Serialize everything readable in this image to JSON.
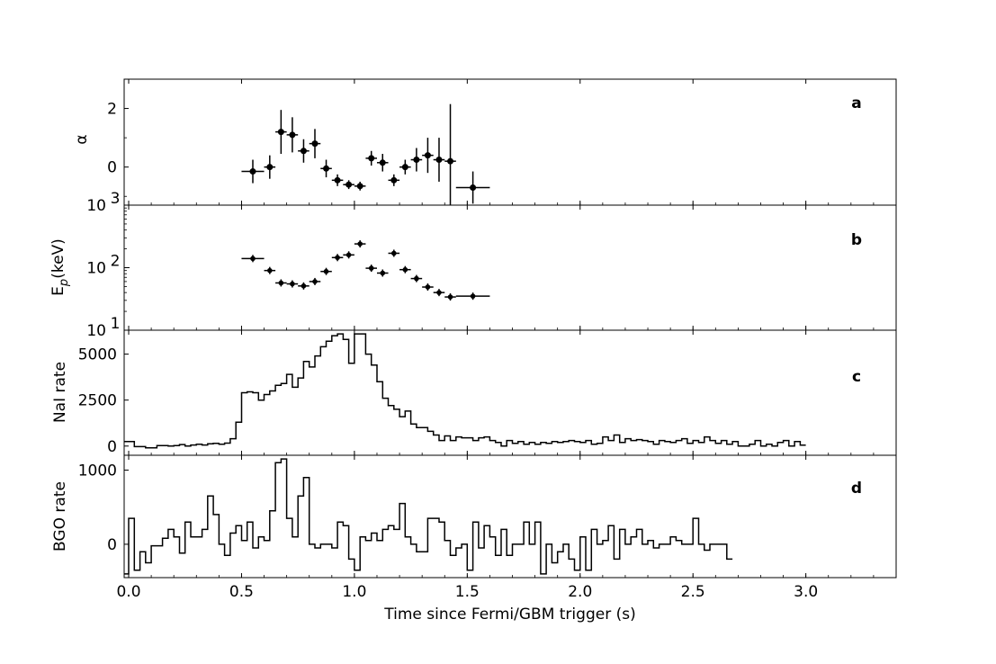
{
  "xlabel": "Time since  Fermi/GBM trigger (s)",
  "x_ticks": [
    "0.0",
    "0.5",
    "1.0",
    "1.5",
    "2.0",
    "2.5",
    "3.0"
  ],
  "chart_data": [
    {
      "type": "scatter",
      "panel": "a",
      "ylabel": "α",
      "xlim": [
        -0.02,
        3.4
      ],
      "ylim": [
        -1.3,
        3.0
      ],
      "y_ticks": [
        "0",
        "2"
      ],
      "points": [
        {
          "x": 0.55,
          "y": -0.15,
          "xerr": 0.05,
          "yerr": 0.4
        },
        {
          "x": 0.625,
          "y": 0.0,
          "xerr": 0.025,
          "yerr": 0.4
        },
        {
          "x": 0.675,
          "y": 1.2,
          "xerr": 0.025,
          "yerr": 0.75
        },
        {
          "x": 0.725,
          "y": 1.1,
          "xerr": 0.025,
          "yerr": 0.6
        },
        {
          "x": 0.775,
          "y": 0.55,
          "xerr": 0.025,
          "yerr": 0.4
        },
        {
          "x": 0.825,
          "y": 0.8,
          "xerr": 0.025,
          "yerr": 0.5
        },
        {
          "x": 0.875,
          "y": -0.05,
          "xerr": 0.025,
          "yerr": 0.3
        },
        {
          "x": 0.925,
          "y": -0.45,
          "xerr": 0.025,
          "yerr": 0.2
        },
        {
          "x": 0.975,
          "y": -0.6,
          "xerr": 0.025,
          "yerr": 0.15
        },
        {
          "x": 1.025,
          "y": -0.65,
          "xerr": 0.025,
          "yerr": 0.15
        },
        {
          "x": 1.075,
          "y": 0.3,
          "xerr": 0.025,
          "yerr": 0.25
        },
        {
          "x": 1.125,
          "y": 0.15,
          "xerr": 0.025,
          "yerr": 0.3
        },
        {
          "x": 1.175,
          "y": -0.45,
          "xerr": 0.025,
          "yerr": 0.2
        },
        {
          "x": 1.225,
          "y": 0.0,
          "xerr": 0.025,
          "yerr": 0.25
        },
        {
          "x": 1.275,
          "y": 0.25,
          "xerr": 0.025,
          "yerr": 0.4
        },
        {
          "x": 1.325,
          "y": 0.4,
          "xerr": 0.025,
          "yerr": 0.6
        },
        {
          "x": 1.375,
          "y": 0.25,
          "xerr": 0.025,
          "yerr": 0.75
        },
        {
          "x": 1.425,
          "y": 0.2,
          "xerr": 0.025,
          "yerr": 1.95
        },
        {
          "x": 1.525,
          "y": -0.7,
          "xerr": 0.075,
          "yerr": 0.55
        }
      ]
    },
    {
      "type": "scatter",
      "panel": "b",
      "ylabel": "E_p (keV)",
      "yscale": "log",
      "xlim": [
        -0.02,
        3.4
      ],
      "ylim": [
        10,
        1000
      ],
      "y_ticks": [
        "10^1",
        "10^2",
        "10^3"
      ],
      "points": [
        {
          "x": 0.55,
          "y": 140,
          "xerr": 0.05
        },
        {
          "x": 0.625,
          "y": 90,
          "xerr": 0.025
        },
        {
          "x": 0.675,
          "y": 57,
          "xerr": 0.025
        },
        {
          "x": 0.725,
          "y": 55,
          "xerr": 0.025
        },
        {
          "x": 0.775,
          "y": 51,
          "xerr": 0.025
        },
        {
          "x": 0.825,
          "y": 60,
          "xerr": 0.025
        },
        {
          "x": 0.875,
          "y": 87,
          "xerr": 0.025
        },
        {
          "x": 0.925,
          "y": 145,
          "xerr": 0.025
        },
        {
          "x": 0.975,
          "y": 160,
          "xerr": 0.025
        },
        {
          "x": 1.025,
          "y": 240,
          "xerr": 0.025
        },
        {
          "x": 1.075,
          "y": 98,
          "xerr": 0.025
        },
        {
          "x": 1.125,
          "y": 82,
          "xerr": 0.025
        },
        {
          "x": 1.175,
          "y": 170,
          "xerr": 0.025
        },
        {
          "x": 1.225,
          "y": 93,
          "xerr": 0.025
        },
        {
          "x": 1.275,
          "y": 67,
          "xerr": 0.025
        },
        {
          "x": 1.325,
          "y": 49,
          "xerr": 0.025
        },
        {
          "x": 1.375,
          "y": 40,
          "xerr": 0.025
        },
        {
          "x": 1.425,
          "y": 34,
          "xerr": 0.025
        },
        {
          "x": 1.525,
          "y": 35,
          "xerr": 0.075
        }
      ]
    },
    {
      "type": "line",
      "style": "step",
      "panel": "c",
      "ylabel": "NaI rate",
      "xlim": [
        -0.02,
        3.4
      ],
      "ylim": [
        -500,
        6300
      ],
      "y_ticks": [
        "0",
        "2500",
        "5000"
      ],
      "bin_width": 0.025,
      "x_start": -0.025,
      "values": [
        250,
        250,
        -30,
        -30,
        -100,
        -100,
        30,
        30,
        0,
        30,
        80,
        0,
        60,
        100,
        60,
        120,
        150,
        100,
        160,
        400,
        1300,
        2900,
        2950,
        2900,
        2500,
        2800,
        3000,
        3300,
        3400,
        3900,
        3200,
        3700,
        4600,
        4300,
        4900,
        5400,
        5700,
        6000,
        6100,
        5800,
        4500,
        6100,
        6100,
        5000,
        4400,
        3500,
        2600,
        2200,
        2000,
        1600,
        1900,
        1200,
        1000,
        1000,
        800,
        600,
        300,
        550,
        300,
        500,
        450,
        450,
        300,
        450,
        500,
        300,
        200,
        0,
        300,
        150,
        250,
        100,
        200,
        100,
        200,
        150,
        250,
        200,
        250,
        300,
        250,
        200,
        300,
        100,
        150,
        500,
        300,
        600,
        200,
        400,
        300,
        350,
        300,
        250,
        100,
        300,
        250,
        200,
        300,
        400,
        150,
        300,
        200,
        500,
        300,
        150,
        300,
        100,
        250,
        0,
        0,
        100,
        300,
        0,
        100,
        0,
        200,
        300,
        0,
        250,
        50
      ]
    },
    {
      "type": "line",
      "style": "step",
      "panel": "d",
      "ylabel": "BGO rate",
      "xlim": [
        -0.02,
        3.4
      ],
      "ylim": [
        -450,
        1200
      ],
      "y_ticks": [
        "0",
        "1000"
      ],
      "bin_width": 0.025,
      "x_start": -0.025,
      "values": [
        -400,
        350,
        -350,
        -100,
        -250,
        -20,
        -20,
        80,
        200,
        100,
        -120,
        300,
        100,
        100,
        200,
        650,
        400,
        0,
        -150,
        150,
        250,
        50,
        300,
        -50,
        100,
        50,
        450,
        1100,
        1150,
        350,
        100,
        650,
        900,
        0,
        -50,
        0,
        0,
        -50,
        300,
        250,
        -200,
        -350,
        100,
        50,
        150,
        50,
        200,
        250,
        200,
        550,
        100,
        0,
        -100,
        -100,
        350,
        350,
        300,
        50,
        -150,
        -50,
        0,
        -350,
        300,
        -50,
        250,
        100,
        -150,
        200,
        -150,
        0,
        0,
        300,
        0,
        300,
        -400,
        0,
        -250,
        -100,
        0,
        -200,
        -350,
        100,
        -350,
        200,
        0,
        50,
        250,
        -200,
        200,
        0,
        100,
        200,
        0,
        50,
        -50,
        0,
        0,
        100,
        50,
        0,
        0,
        350,
        0,
        -80,
        0,
        0,
        0,
        -200
      ]
    }
  ],
  "panel_letters": [
    "a",
    "b",
    "c",
    "d"
  ]
}
